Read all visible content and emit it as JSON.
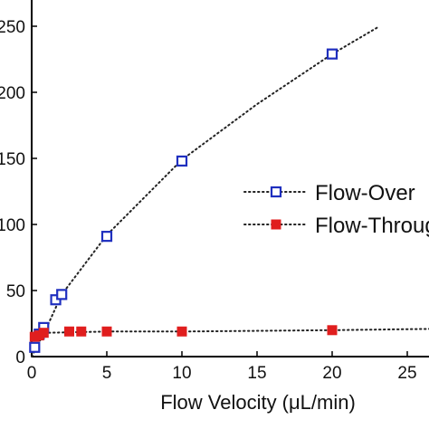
{
  "chart_data": {
    "type": "scatter",
    "title": "",
    "xlabel": "Flow Velocity (μL/min)",
    "ylabel": "",
    "xlim": [
      0,
      27
    ],
    "ylim": [
      0,
      250
    ],
    "xticks": [
      0,
      5,
      10,
      15,
      20,
      25
    ],
    "yticks": [
      0,
      50,
      100,
      150,
      200,
      250
    ],
    "ytick_labels": [
      "0",
      "50",
      "100",
      "150",
      "200",
      "250"
    ],
    "grid": false,
    "legend_position": "right",
    "series": [
      {
        "name": "Flow-Over",
        "marker": "open-square",
        "color": "#1f2fbf",
        "points": [
          {
            "x": 0.2,
            "y": 7
          },
          {
            "x": 0.5,
            "y": 17
          },
          {
            "x": 0.8,
            "y": 22
          },
          {
            "x": 1.6,
            "y": 43
          },
          {
            "x": 2.0,
            "y": 47
          },
          {
            "x": 5.0,
            "y": 91
          },
          {
            "x": 10.0,
            "y": 148
          },
          {
            "x": 20.0,
            "y": 229
          }
        ],
        "fit_curve": [
          [
            0,
            0
          ],
          [
            1,
            22
          ],
          [
            2,
            47
          ],
          [
            5,
            92
          ],
          [
            10,
            149
          ],
          [
            15,
            191
          ],
          [
            20,
            229
          ],
          [
            23,
            249
          ]
        ]
      },
      {
        "name": "Flow-Through",
        "marker": "filled-square",
        "color": "#e01e1e",
        "points": [
          {
            "x": 0.2,
            "y": 15
          },
          {
            "x": 0.5,
            "y": 16
          },
          {
            "x": 0.8,
            "y": 18
          },
          {
            "x": 2.5,
            "y": 19
          },
          {
            "x": 3.3,
            "y": 19
          },
          {
            "x": 5.0,
            "y": 19
          },
          {
            "x": 10.0,
            "y": 19
          },
          {
            "x": 20.0,
            "y": 20
          }
        ],
        "fit_curve": [
          [
            0,
            14
          ],
          [
            1,
            18
          ],
          [
            5,
            19
          ],
          [
            10,
            19
          ],
          [
            20,
            20
          ],
          [
            27,
            21
          ]
        ]
      }
    ]
  }
}
